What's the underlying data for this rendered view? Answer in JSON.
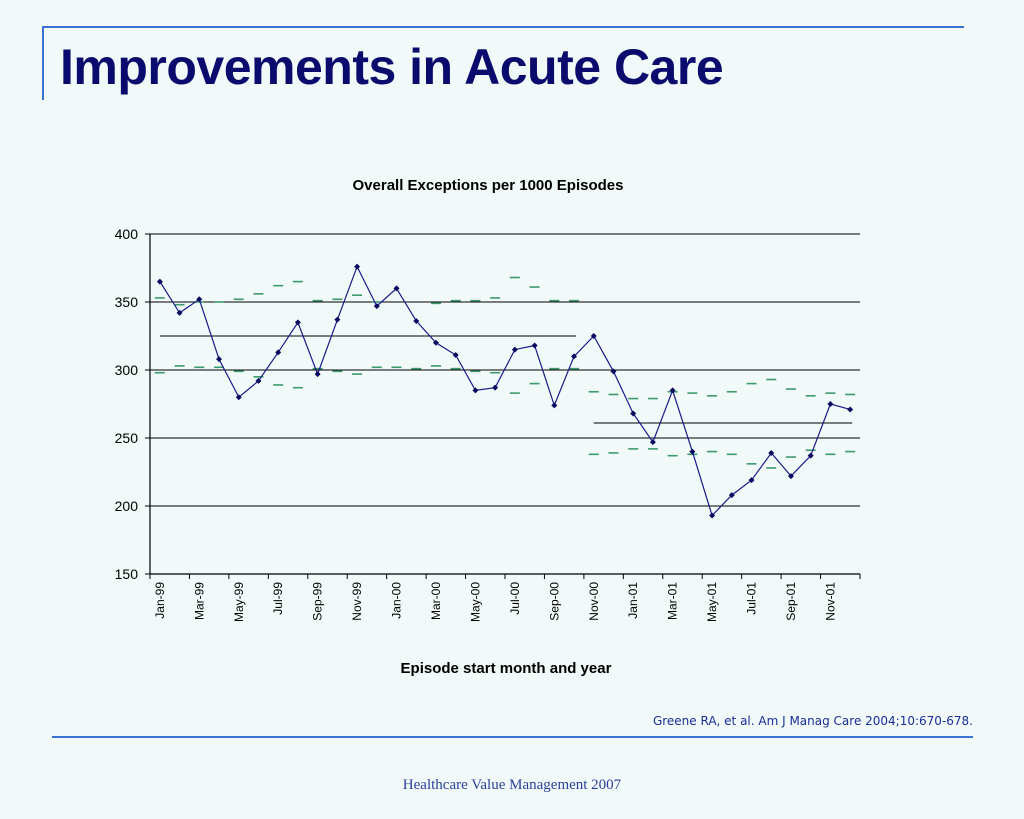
{
  "slide": {
    "title": "Improvements in Acute Care",
    "citation": "Greene RA, et al. Am J Manag Care 2004;10:670-678.",
    "footer": "Healthcare Value Management 2007"
  },
  "colors": {
    "background": "#f1f9f9",
    "title": "#0b0b6e",
    "accent_rule": "#3a72d8",
    "data_line": "#1a1a8c",
    "control_limit": "#3d9a6b",
    "gridline": "#000000"
  },
  "chart_data": {
    "type": "line",
    "title": "Overall Exceptions per 1000 Episodes",
    "xlabel": "Episode start month and year",
    "ylabel": "",
    "ylim": [
      150,
      400
    ],
    "yticks": [
      150,
      200,
      250,
      300,
      350,
      400
    ],
    "grid": true,
    "tick_labels": [
      "Jan-99",
      "Mar-99",
      "May-99",
      "Jul-99",
      "Sep-99",
      "Nov-99",
      "Jan-00",
      "Mar-00",
      "May-00",
      "Jul-00",
      "Sep-00",
      "Nov-00",
      "Jan-01",
      "Mar-01",
      "May-01",
      "Jul-01",
      "Sep-01",
      "Nov-01"
    ],
    "x": [
      "Jan-99",
      "Feb-99",
      "Mar-99",
      "Apr-99",
      "May-99",
      "Jun-99",
      "Jul-99",
      "Aug-99",
      "Sep-99",
      "Oct-99",
      "Nov-99",
      "Dec-99",
      "Jan-00",
      "Feb-00",
      "Mar-00",
      "Apr-00",
      "May-00",
      "Jun-00",
      "Jul-00",
      "Aug-00",
      "Sep-00",
      "Oct-00",
      "Nov-00",
      "Dec-00",
      "Jan-01",
      "Feb-01",
      "Mar-01",
      "Apr-01",
      "May-01",
      "Jun-01",
      "Jul-01",
      "Aug-01",
      "Sep-01",
      "Oct-01",
      "Nov-01",
      "Dec-01"
    ],
    "series": [
      {
        "role": "exceptions",
        "values": [
          365,
          342,
          352,
          308,
          280,
          292,
          313,
          335,
          297,
          337,
          376,
          347,
          360,
          336,
          320,
          311,
          285,
          287,
          315,
          318,
          274,
          310,
          325,
          299,
          268,
          247,
          285,
          240,
          193,
          208,
          219,
          239,
          222,
          237,
          275,
          271
        ]
      },
      {
        "role": "upper-control-limit",
        "values": [
          353,
          348,
          350,
          350,
          352,
          356,
          362,
          365,
          351,
          352,
          355,
          350,
          null,
          null,
          349,
          351,
          351,
          353,
          368,
          361,
          351,
          351,
          284,
          282,
          279,
          279,
          284,
          283,
          281,
          284,
          290,
          293,
          286,
          281,
          283,
          282
        ]
      },
      {
        "role": "lower-control-limit",
        "values": [
          298,
          303,
          302,
          302,
          299,
          295,
          289,
          287,
          301,
          299,
          297,
          302,
          302,
          301,
          303,
          301,
          299,
          298,
          283,
          290,
          301,
          301,
          238,
          239,
          242,
          242,
          237,
          238,
          240,
          238,
          231,
          228,
          236,
          241,
          238,
          240
        ]
      }
    ],
    "center_lines": [
      {
        "from": "Jan-99",
        "to": "Oct-00",
        "value": 325
      },
      {
        "from": "Nov-00",
        "to": "Dec-01",
        "value": 261
      }
    ]
  }
}
